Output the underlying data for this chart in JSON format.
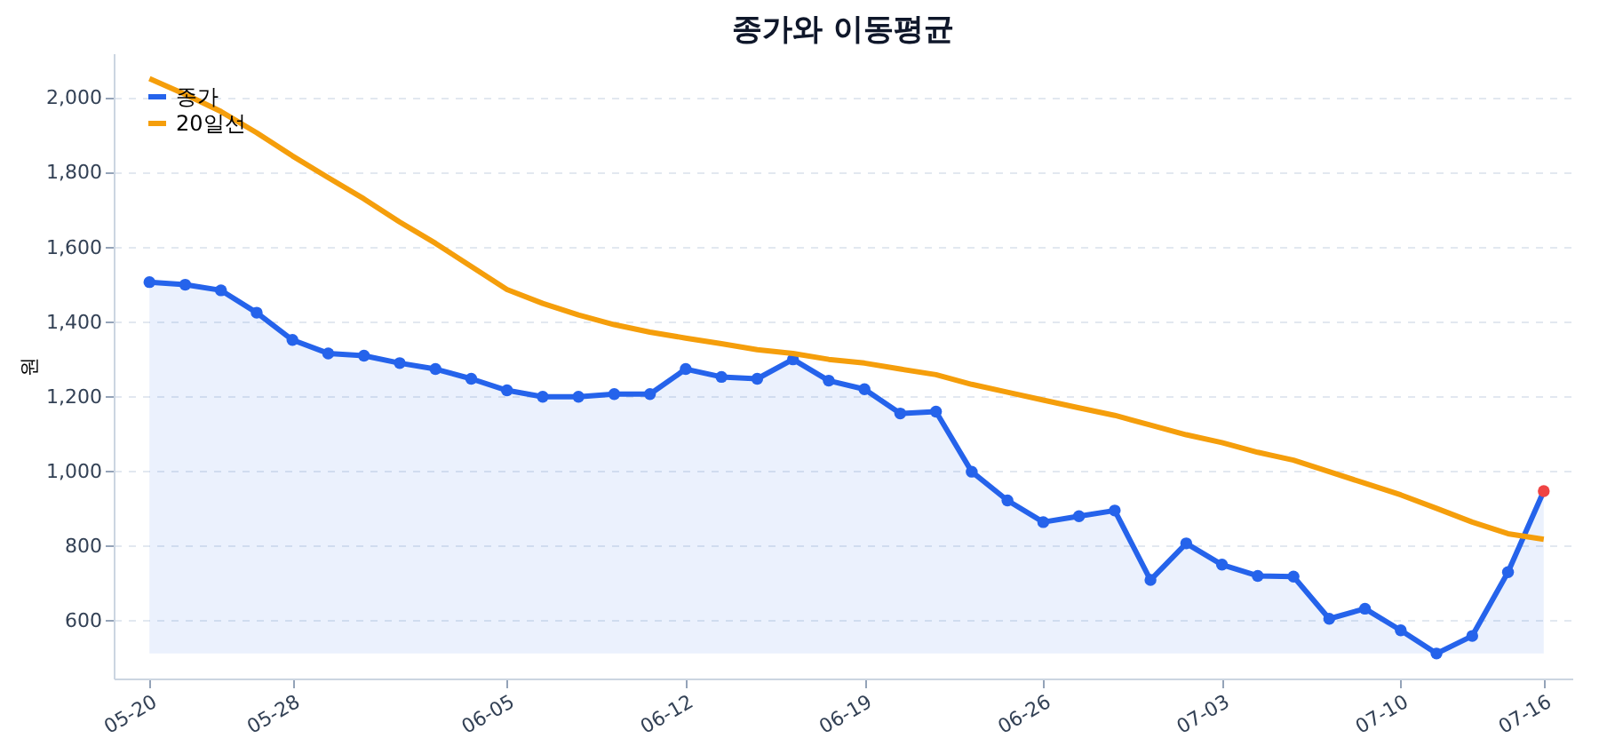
{
  "chart_data": {
    "type": "line",
    "title": "종가와 이동평균",
    "ylabel": "원",
    "categories": [
      "05-20",
      null,
      null,
      null,
      "05-28",
      null,
      null,
      null,
      null,
      null,
      "06-05",
      null,
      null,
      null,
      null,
      "06-12",
      null,
      null,
      null,
      null,
      "06-19",
      null,
      null,
      null,
      null,
      "06-26",
      null,
      null,
      null,
      null,
      "07-03",
      null,
      null,
      null,
      null,
      "07-10",
      null,
      null,
      null,
      "07-16"
    ],
    "series": [
      {
        "name": "종가",
        "type": "area",
        "marker": "circle",
        "color": "#2563eb",
        "colors": [
          "#2563eb",
          "#2563eb",
          "#2563eb",
          "#2563eb",
          "#2563eb",
          "#2563eb",
          "#2563eb",
          "#2563eb",
          "#2563eb",
          "#2563eb",
          "#2563eb",
          "#2563eb",
          "#2563eb",
          "#2563eb",
          "#2563eb",
          "#2563eb",
          "#2563eb",
          "#2563eb",
          "#2563eb",
          "#2563eb",
          "#2563eb",
          "#2563eb",
          "#2563eb",
          "#2563eb",
          "#2563eb",
          "#2563eb",
          "#2563eb",
          "#2563eb",
          "#2563eb",
          "#2563eb",
          "#2563eb",
          "#2563eb",
          "#2563eb",
          "#2563eb",
          "#2563eb",
          "#2563eb",
          "#2563eb",
          "#2563eb",
          "#2563eb",
          "#ef4444"
        ],
        "values": [
          1507,
          1500,
          1485,
          1425,
          1352,
          1316,
          1310,
          1290,
          1274,
          1248,
          1217,
          1200,
          1200,
          1207,
          1207,
          1274,
          1253,
          1248,
          1300,
          1243,
          1220,
          1155,
          1160,
          999,
          922,
          864,
          880,
          895,
          709,
          807,
          750,
          720,
          718,
          605,
          632,
          574,
          512,
          559,
          730,
          947
        ]
      },
      {
        "name": "20일선",
        "marker": "none",
        "color": "#f59e0b",
        "values": [
          2052,
          2010,
          1964,
          1907,
          1845,
          1787,
          1730,
          1668,
          1611,
          1549,
          1487,
          1450,
          1419,
          1393,
          1373,
          1357,
          1342,
          1326,
          1316,
          1300,
          1290,
          1274,
          1259,
          1233,
          1212,
          1191,
          1170,
          1150,
          1124,
          1098,
          1077,
          1051,
          1030,
          999,
          968,
          937,
          901,
          864,
          833,
          818
        ]
      }
    ],
    "ylim": [
      445,
      2120
    ],
    "yticks": [
      {
        "value": 600,
        "label": "600"
      },
      {
        "value": 800,
        "label": "800"
      },
      {
        "value": 1000,
        "label": "1,000"
      },
      {
        "value": 1200,
        "label": "1,200"
      },
      {
        "value": 1400,
        "label": "1,400"
      },
      {
        "value": 1600,
        "label": "1,600"
      },
      {
        "value": 1800,
        "label": "1,800"
      },
      {
        "value": 2000,
        "label": "2,000"
      }
    ],
    "grid": "y",
    "legend": "top left",
    "line_style": "solid"
  }
}
